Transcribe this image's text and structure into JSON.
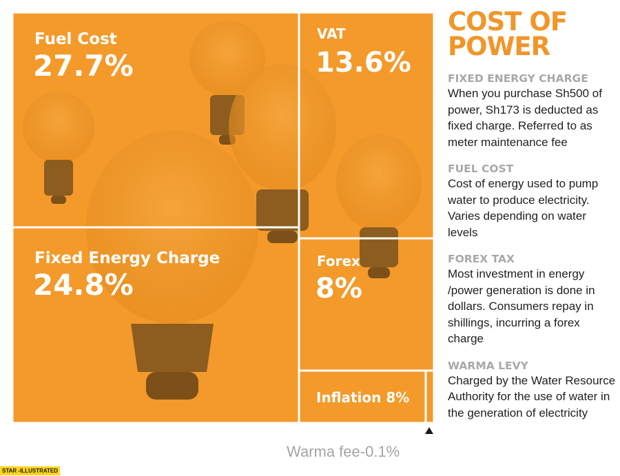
{
  "chart_data": {
    "type": "treemap",
    "title": "COST OF POWER",
    "unit": "%",
    "tiles": [
      {
        "name": "Fuel Cost",
        "value": 27.7,
        "label": "Fuel Cost",
        "value_label": "27.7%"
      },
      {
        "name": "Fixed Energy Charge",
        "value": 24.8,
        "label": "Fixed Energy Charge",
        "value_label": "24.8%"
      },
      {
        "name": "VAT",
        "value": 13.6,
        "label": "VAT",
        "value_label": "13.6%"
      },
      {
        "name": "Forex",
        "value": 8,
        "label": "Forex",
        "value_label": "8%"
      },
      {
        "name": "Inflation",
        "value": 8,
        "label": "Inflation 8%",
        "value_label": ""
      },
      {
        "name": "Warma fee",
        "value": 0.1,
        "label": "Warma fee-0.1%",
        "value_label": ""
      }
    ],
    "colors": {
      "tile": "#f39a2b",
      "tile_dark": "#e8891c",
      "divider": "#ffffff"
    }
  },
  "panel": {
    "title_line1": "COST OF",
    "title_line2": "POWER",
    "definitions": [
      {
        "heading": "FIXED ENERGY CHARGE",
        "body": "When you purchase Sh500 of power, Sh173 is deducted as fixed charge. Referred to as meter maintenance fee"
      },
      {
        "heading": "FUEL COST",
        "body": "Cost of energy used to pump water to produce electricity. Varies depending on water levels"
      },
      {
        "heading": "FOREX TAX",
        "body": "Most investment in energy /power generation is done in dollars. Consumers repay in shillings, incurring a forex charge"
      },
      {
        "heading": "WARMA LEVY",
        "body": "Charged by the Water Resource Authority for the use of water in the generation of electricity"
      }
    ]
  },
  "credit": "STAR -ILLUSTRATED",
  "icons": {
    "warma_pointer": "triangle-up-icon"
  }
}
